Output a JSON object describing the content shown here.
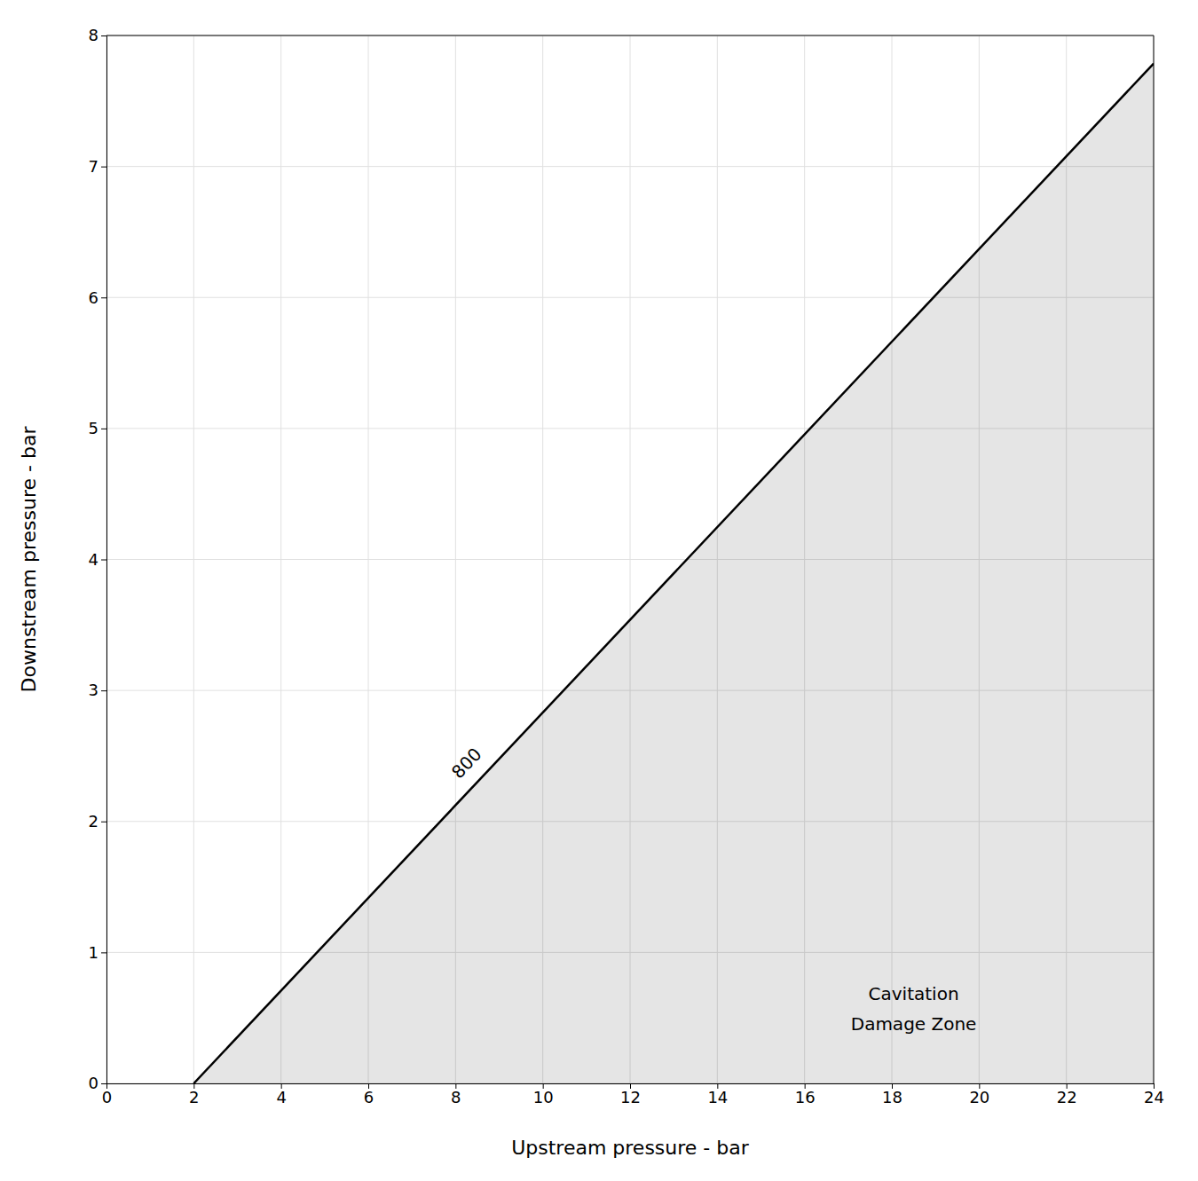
{
  "chart_data": {
    "type": "area",
    "xlabel": "Upstream pressure - bar",
    "ylabel": "Downstream pressure - bar",
    "x": [
      2,
      24
    ],
    "values": [
      0,
      7.786
    ],
    "color": "#000000",
    "xlim": [
      0,
      24
    ],
    "ylim": [
      0,
      8
    ],
    "xticks": [
      0,
      2,
      4,
      6,
      8,
      10,
      12,
      14,
      16,
      18,
      20,
      22,
      24
    ],
    "yticks": [
      0,
      1,
      2,
      3,
      4,
      5,
      6,
      7,
      8
    ],
    "grid": true,
    "annotations": [
      "800",
      "Cavitation\nDamage Zone"
    ]
  }
}
